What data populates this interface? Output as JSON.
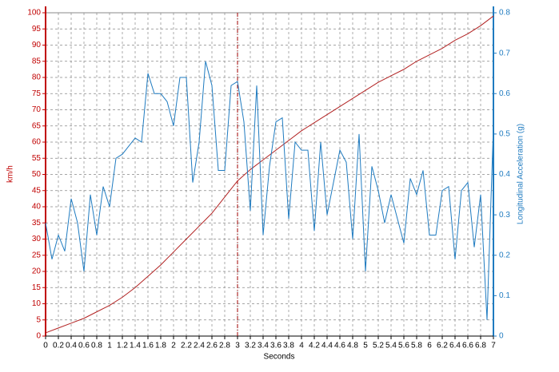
{
  "chart_data": {
    "type": "line",
    "xlabel": "Seconds",
    "ylabel": "km/h",
    "y2label": "Longitudinal Acceleration (g)",
    "xlim": [
      0,
      7
    ],
    "ylim": [
      0,
      100
    ],
    "y2lim": [
      0,
      0.8
    ],
    "xticks": [
      0,
      0.2,
      0.4,
      0.6,
      0.8,
      1,
      1.2,
      1.4,
      1.6,
      1.8,
      2,
      2.2,
      2.4,
      2.6,
      2.8,
      3,
      3.2,
      3.4,
      3.6,
      3.8,
      4,
      4.2,
      4.4,
      4.6,
      4.8,
      5,
      5.2,
      5.4,
      5.6,
      5.8,
      6,
      6.2,
      6.4,
      6.6,
      6.8,
      7
    ],
    "yticks": [
      0,
      5,
      10,
      15,
      20,
      25,
      30,
      35,
      40,
      45,
      50,
      55,
      60,
      65,
      70,
      75,
      80,
      85,
      90,
      95,
      100
    ],
    "y2ticks": [
      0,
      0.1,
      0.2,
      0.3,
      0.4,
      0.5,
      0.6,
      0.7,
      0.8
    ],
    "grid": true,
    "cursor_x": 3,
    "cursor_color": "#a00000",
    "y_color": "#c00000",
    "y2_color": "#1f7bc0",
    "series": [
      {
        "color": "#b22222",
        "x": [
          0,
          0.2,
          0.4,
          0.6,
          0.8,
          1,
          1.2,
          1.4,
          1.6,
          1.8,
          2,
          2.2,
          2.4,
          2.6,
          2.8,
          3,
          3.2,
          3.4,
          3.6,
          3.8,
          4,
          4.2,
          4.4,
          4.6,
          4.8,
          5,
          5.2,
          5.4,
          5.6,
          5.8,
          6,
          6.2,
          6.4,
          6.6,
          6.8,
          7
        ],
        "values": [
          1,
          2.5,
          4,
          5.5,
          7.5,
          9.5,
          12,
          15,
          18.5,
          22,
          26,
          30,
          34,
          38,
          43,
          48,
          51.5,
          54.5,
          57.5,
          60.5,
          63.5,
          66,
          68.5,
          71,
          73.5,
          76,
          78.5,
          80.5,
          82.5,
          85,
          87,
          89,
          91.5,
          93.5,
          96,
          99
        ]
      },
      {
        "color": "#1f7bc0",
        "axis": "y2",
        "x": [
          0,
          0.1,
          0.2,
          0.3,
          0.4,
          0.5,
          0.6,
          0.7,
          0.8,
          0.9,
          1,
          1.1,
          1.2,
          1.3,
          1.4,
          1.5,
          1.6,
          1.7,
          1.8,
          1.9,
          2,
          2.1,
          2.2,
          2.3,
          2.4,
          2.5,
          2.6,
          2.7,
          2.8,
          2.9,
          3,
          3.1,
          3.2,
          3.3,
          3.4,
          3.5,
          3.6,
          3.7,
          3.8,
          3.9,
          4,
          4.1,
          4.2,
          4.3,
          4.4,
          4.5,
          4.6,
          4.7,
          4.8,
          4.9,
          5,
          5.1,
          5.2,
          5.3,
          5.4,
          5.5,
          5.6,
          5.7,
          5.8,
          5.9,
          6,
          6.1,
          6.2,
          6.3,
          6.4,
          6.5,
          6.6,
          6.7,
          6.8,
          6.9,
          7
        ],
        "values": [
          0.28,
          0.19,
          0.25,
          0.21,
          0.34,
          0.28,
          0.16,
          0.35,
          0.25,
          0.37,
          0.32,
          0.44,
          0.45,
          0.47,
          0.49,
          0.48,
          0.65,
          0.6,
          0.6,
          0.58,
          0.52,
          0.64,
          0.64,
          0.38,
          0.48,
          0.68,
          0.62,
          0.41,
          0.41,
          0.62,
          0.63,
          0.53,
          0.31,
          0.62,
          0.25,
          0.42,
          0.53,
          0.54,
          0.29,
          0.48,
          0.46,
          0.46,
          0.26,
          0.48,
          0.3,
          0.38,
          0.46,
          0.43,
          0.24,
          0.5,
          0.16,
          0.42,
          0.36,
          0.28,
          0.35,
          0.29,
          0.23,
          0.39,
          0.35,
          0.41,
          0.25,
          0.25,
          0.36,
          0.37,
          0.19,
          0.36,
          0.38,
          0.22,
          0.35,
          0.04,
          0.52
        ]
      }
    ]
  }
}
